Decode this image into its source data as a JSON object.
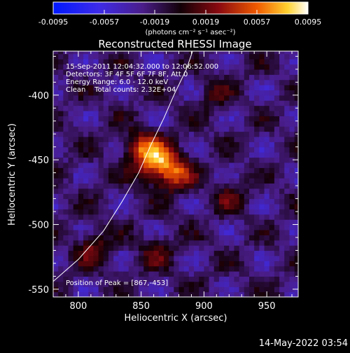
{
  "colorbar": {
    "ticks": [
      "-0.0095",
      "-0.0057",
      "-0.0019",
      "0.0019",
      "0.0057",
      "0.0095"
    ],
    "units": "(photons cm⁻² s⁻¹ asec⁻²)"
  },
  "title": "Reconstructed RHESSI Image",
  "info": {
    "line1": "15-Sep-2011 12:04:32.000 to 12:06:52.000",
    "line2": "Detectors: 3F 4F 5F 6F 7F 8F, Att 0",
    "line3": "Energy Range: 6.0 - 12.0 keV",
    "line4": "Clean    Total counts: 2.32E+04"
  },
  "peak_label": "Position of Peak = [867,-453]",
  "timestamp": "14-May-2022 03:54",
  "chart_data": {
    "type": "heatmap",
    "title": "Reconstructed RHESSI Image",
    "xlabel": "Heliocentric X (arcsec)",
    "ylabel": "Heliocentric Y (arcsec)",
    "xlim": [
      780,
      975
    ],
    "ylim": [
      -556,
      -366
    ],
    "xticks": [
      800,
      850,
      900,
      950
    ],
    "yticks": [
      -550,
      -500,
      -450,
      -400
    ],
    "colorbar_range": [
      -0.0095,
      0.0095
    ],
    "peak": [
      867,
      -453
    ],
    "limb_curve": [
      [
        780,
        -544
      ],
      [
        800,
        -527
      ],
      [
        820,
        -505
      ],
      [
        835,
        -482
      ],
      [
        848,
        -460
      ],
      [
        858,
        -438
      ],
      [
        868,
        -418
      ],
      [
        877,
        -398
      ],
      [
        886,
        -380
      ],
      [
        891,
        -366
      ]
    ],
    "sources": [
      {
        "x": 864,
        "y": -452,
        "peak": 0.0095
      },
      {
        "x": 848,
        "y": -440,
        "peak": 0.0052
      },
      {
        "x": 880,
        "y": -462,
        "peak": 0.0045
      },
      {
        "x": 812,
        "y": -518,
        "peak": 0.0042
      },
      {
        "x": 862,
        "y": -520,
        "peak": 0.003
      },
      {
        "x": 920,
        "y": -478,
        "peak": 0.0026
      },
      {
        "x": 908,
        "y": -400,
        "peak": 0.0024
      }
    ]
  }
}
